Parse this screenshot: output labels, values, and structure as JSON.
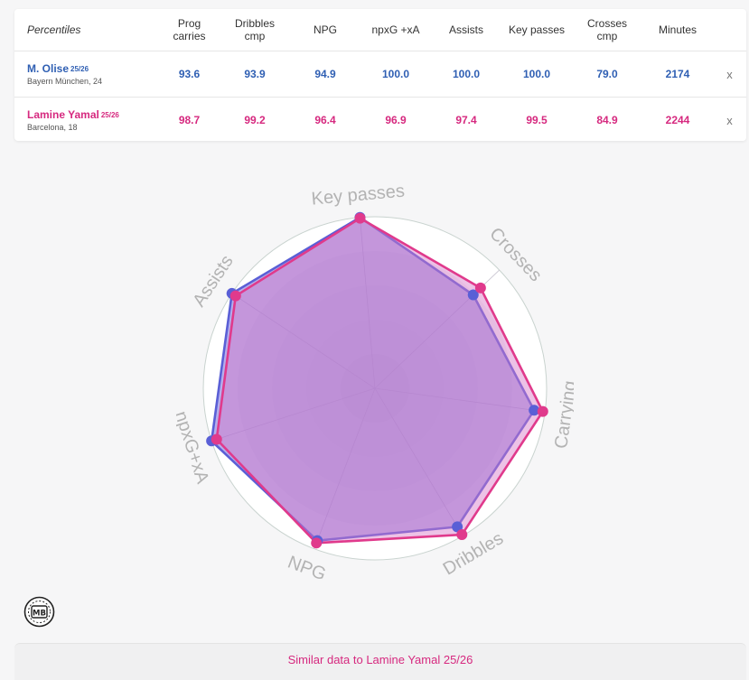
{
  "table": {
    "header_label": "Percentiles",
    "columns": [
      [
        "Prog",
        "carries"
      ],
      [
        "Dribbles",
        "cmp"
      ],
      [
        "NPG",
        ""
      ],
      [
        "npxG +xA",
        ""
      ],
      [
        "Assists",
        ""
      ],
      [
        "Key passes",
        ""
      ],
      [
        "Crosses",
        "cmp"
      ],
      [
        "Minutes",
        ""
      ]
    ],
    "remove_label": "x",
    "players": [
      {
        "name": "M. Olise",
        "season": "25/26",
        "club": "Bayern München, 24",
        "values": [
          "93.6",
          "93.9",
          "94.9",
          "100.0",
          "100.0",
          "100.0",
          "79.0",
          "2174"
        ],
        "color": "#2f5fb3"
      },
      {
        "name": "Lamine Yamal",
        "season": "25/26",
        "club": "Barcelona, 18",
        "values": [
          "98.7",
          "99.2",
          "96.4",
          "96.9",
          "97.4",
          "99.5",
          "84.9",
          "2244"
        ],
        "color": "#d6297f"
      }
    ]
  },
  "chart_data": {
    "type": "radar",
    "axes": [
      "Key passes",
      "Crosses",
      "Carrying",
      "Dribbles",
      "NPG",
      "npxG+xA",
      "Assists"
    ],
    "range": [
      0,
      100
    ],
    "series": [
      {
        "name": "M. Olise 25/26",
        "values": [
          100.0,
          79.0,
          93.6,
          93.9,
          94.9,
          100.0,
          100.0
        ],
        "color": "#5a5fd6"
      },
      {
        "name": "Lamine Yamal 25/26",
        "values": [
          99.5,
          84.9,
          98.7,
          99.2,
          96.4,
          96.9,
          97.4
        ],
        "color": "#e03a8c"
      }
    ]
  },
  "logo": {
    "text": "MB"
  },
  "footer": {
    "text": "Similar data to Lamine Yamal 25/26"
  }
}
